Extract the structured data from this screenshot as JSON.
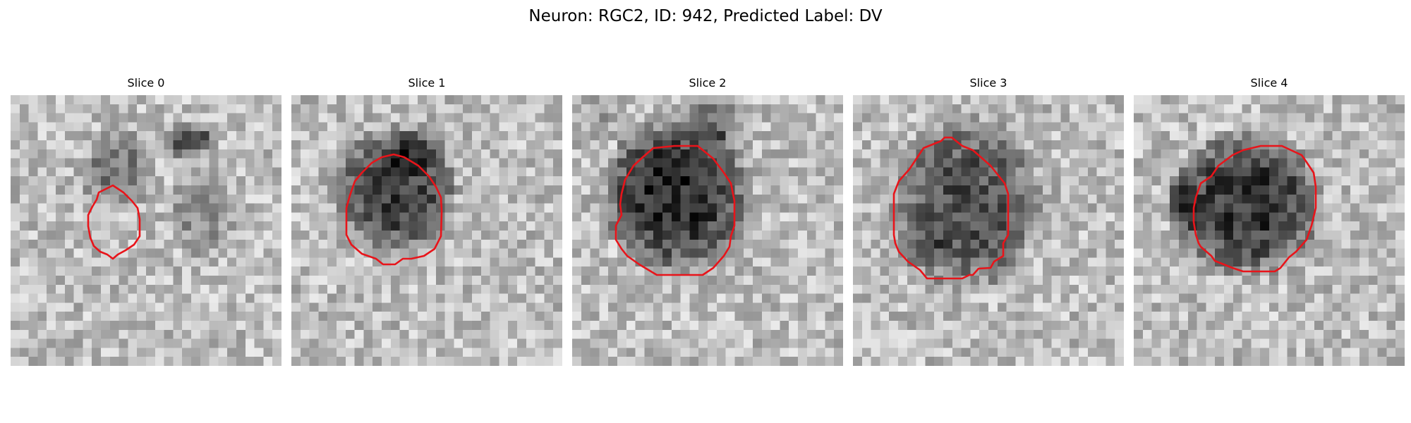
{
  "figure": {
    "title": "Neuron: RGC2, ID: 942, Predicted Label: DV"
  },
  "panels": [
    {
      "title": "Slice 0"
    },
    {
      "title": "Slice 1"
    },
    {
      "title": "Slice 2"
    },
    {
      "title": "Slice 3"
    },
    {
      "title": "Slice 4"
    }
  ],
  "colors": {
    "contour": "#e8141a",
    "background": "#ffffff"
  }
}
